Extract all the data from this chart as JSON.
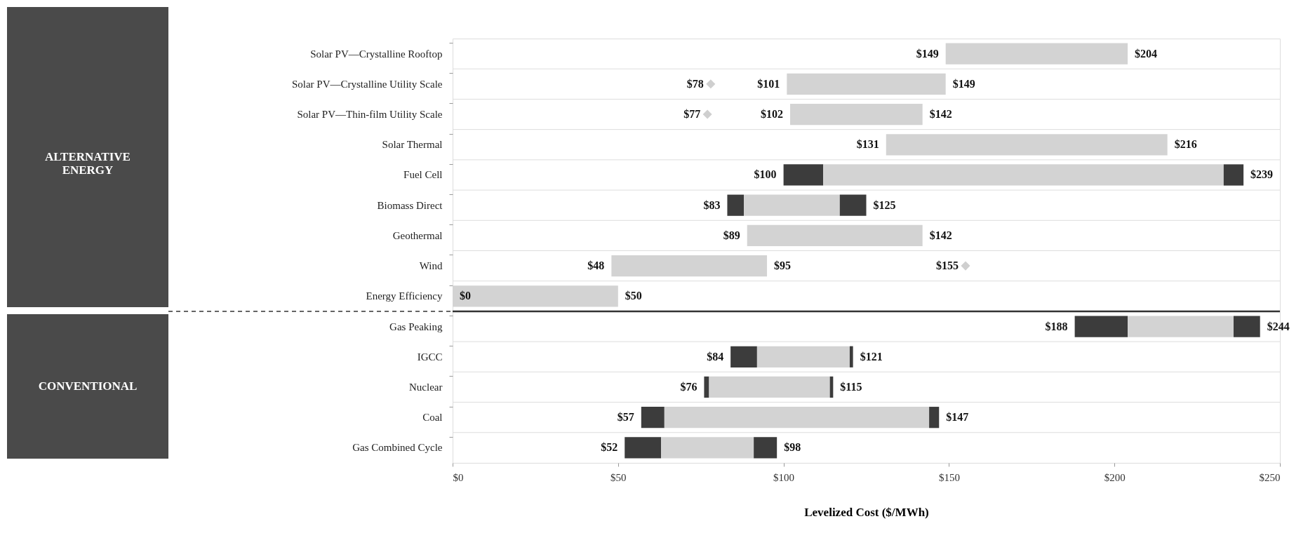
{
  "chart_data": {
    "type": "bar",
    "orientation": "horizontal",
    "xlabel": "Levelized Cost ($/MWh)",
    "categories": [
      "Solar PV—Crystalline Rooftop",
      "Solar PV—Crystalline Utility Scale",
      "Solar PV—Thin-film Utility Scale",
      "Solar Thermal",
      "Fuel Cell",
      "Biomass Direct",
      "Geothermal",
      "Wind",
      "Energy Efficiency",
      "Gas Peaking",
      "IGCC",
      "Nuclear",
      "Coal",
      "Gas Combined Cycle"
    ],
    "series": [
      {
        "color": "#3c3c3c",
        "base": [
          null,
          null,
          null,
          null,
          100,
          83,
          null,
          null,
          null,
          188,
          84,
          76,
          57,
          52
        ],
        "values": [
          null,
          null,
          null,
          null,
          12,
          5,
          null,
          null,
          null,
          16,
          8,
          1.5,
          7,
          11
        ]
      },
      {
        "color": "#d3d3d3",
        "base": [
          149,
          101,
          102,
          131,
          112,
          88,
          89,
          48,
          0,
          204,
          92,
          77.5,
          64,
          63
        ],
        "values": [
          55,
          48,
          40,
          85,
          121,
          29,
          53,
          47,
          50,
          32,
          28,
          36.5,
          80,
          28
        ]
      },
      {
        "color": "#3c3c3c",
        "base": [
          null,
          null,
          null,
          null,
          233,
          117,
          null,
          null,
          null,
          236,
          120,
          114,
          144,
          91
        ],
        "values": [
          null,
          null,
          null,
          null,
          6,
          8,
          null,
          null,
          null,
          8,
          1,
          1,
          3,
          7
        ]
      },
      {
        "type": "scatter",
        "marker": "diamond",
        "color": "#cfcfcf",
        "values": [
          null,
          78,
          77,
          null,
          null,
          null,
          null,
          155,
          null,
          null,
          null,
          null,
          null,
          null
        ]
      }
    ],
    "xlim": [
      0,
      250
    ],
    "xticks": [
      {
        "value": 0,
        "label": "$0"
      },
      {
        "value": 50,
        "label": "$50"
      },
      {
        "value": 100,
        "label": "$100"
      },
      {
        "value": 150,
        "label": "$150"
      },
      {
        "value": 200,
        "label": "$200"
      },
      {
        "value": 250,
        "label": "$250"
      }
    ],
    "grid": "y",
    "ref_lines": [
      {
        "axis": "y",
        "value": "Gas Peaking",
        "line_style": "solid",
        "color": "#333333"
      }
    ],
    "annotations": [
      "ALTERNATIVE ENERGY",
      "CONVENTIONAL",
      {
        "text": "$149",
        "x": 149,
        "y": "Solar PV—Crystalline Rooftop"
      },
      {
        "text": "$204",
        "x": 204,
        "y": "Solar PV—Crystalline Rooftop"
      },
      {
        "text": "$78",
        "x": 78,
        "y": "Solar PV—Crystalline Utility Scale"
      },
      {
        "text": "$101",
        "x": 101,
        "y": "Solar PV—Crystalline Utility Scale"
      },
      {
        "text": "$149",
        "x": 149,
        "y": "Solar PV—Crystalline Utility Scale"
      },
      {
        "text": "$77",
        "x": 77,
        "y": "Solar PV—Thin-film Utility Scale"
      },
      {
        "text": "$102",
        "x": 102,
        "y": "Solar PV—Thin-film Utility Scale"
      },
      {
        "text": "$142",
        "x": 142,
        "y": "Solar PV—Thin-film Utility Scale"
      },
      {
        "text": "$131",
        "x": 131,
        "y": "Solar Thermal"
      },
      {
        "text": "$216",
        "x": 216,
        "y": "Solar Thermal"
      },
      {
        "text": "$100",
        "x": 100,
        "y": "Fuel Cell"
      },
      {
        "text": "$239",
        "x": 239,
        "y": "Fuel Cell"
      },
      {
        "text": "$83",
        "x": 83,
        "y": "Biomass Direct"
      },
      {
        "text": "$125",
        "x": 125,
        "y": "Biomass Direct"
      },
      {
        "text": "$89",
        "x": 89,
        "y": "Geothermal"
      },
      {
        "text": "$142",
        "x": 142,
        "y": "Geothermal"
      },
      {
        "text": "$48",
        "x": 48,
        "y": "Wind"
      },
      {
        "text": "$95",
        "x": 95,
        "y": "Wind"
      },
      {
        "text": "$155",
        "x": 155,
        "y": "Wind"
      },
      {
        "text": "$0",
        "x": 0,
        "y": "Energy Efficiency"
      },
      {
        "text": "$50",
        "x": 50,
        "y": "Energy Efficiency"
      },
      {
        "text": "$188",
        "x": 188,
        "y": "Gas Peaking"
      },
      {
        "text": "$244",
        "x": 244,
        "y": "Gas Peaking"
      },
      {
        "text": "$84",
        "x": 84,
        "y": "IGCC"
      },
      {
        "text": "$121",
        "x": 121,
        "y": "IGCC"
      },
      {
        "text": "$76",
        "x": 76,
        "y": "Nuclear"
      },
      {
        "text": "$115",
        "x": 115,
        "y": "Nuclear"
      },
      {
        "text": "$57",
        "x": 57,
        "y": "Coal"
      },
      {
        "text": "$147",
        "x": 147,
        "y": "Coal"
      },
      {
        "text": "$52",
        "x": 52,
        "y": "Gas Combined Cycle"
      },
      {
        "text": "$98",
        "x": 98,
        "y": "Gas Combined Cycle"
      }
    ]
  }
}
